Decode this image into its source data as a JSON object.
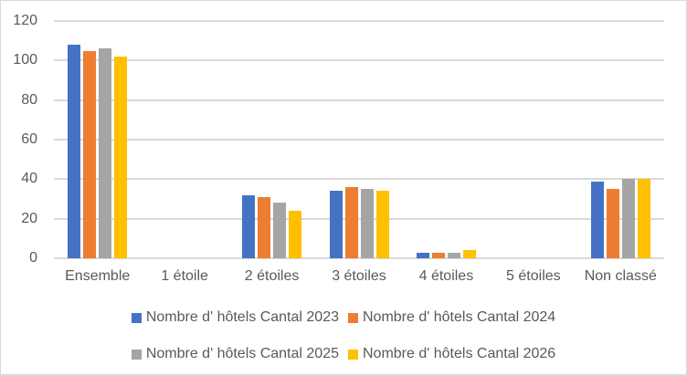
{
  "chart_data": {
    "type": "bar",
    "title": "",
    "xlabel": "",
    "ylabel": "",
    "categories": [
      "Ensemble",
      "1 étoile",
      "2 étoiles",
      "3 étoiles",
      "4 étoiles",
      "5 étoiles",
      "Non classé"
    ],
    "series": [
      {
        "name": "Nombre d' hôtels Cantal 2023",
        "color": "#4472C4",
        "values": [
          108,
          0,
          32,
          34,
          3,
          0,
          39
        ]
      },
      {
        "name": "Nombre d' hôtels Cantal 2024",
        "color": "#ED7D31",
        "values": [
          105,
          0,
          31,
          36,
          3,
          0,
          35
        ]
      },
      {
        "name": "Nombre d' hôtels Cantal 2025",
        "color": "#A5A5A5",
        "values": [
          106,
          0,
          28,
          35,
          3,
          0,
          40
        ]
      },
      {
        "name": "Nombre d' hôtels Cantal 2026",
        "color": "#FFC000",
        "values": [
          102,
          0,
          24,
          34,
          4,
          0,
          40
        ]
      }
    ],
    "y_axis": {
      "min": 0,
      "max": 120,
      "step": 20,
      "ticks": [
        0,
        20,
        40,
        60,
        80,
        100,
        120
      ]
    },
    "grid": true,
    "legend_position": "bottom",
    "legend_rows": [
      [
        0,
        1
      ],
      [
        2,
        3
      ]
    ],
    "colors": {
      "gridline": "#D9D9D9",
      "axis_text": "#595959",
      "legend_text": "#595959",
      "background": "#FFFFFF",
      "frame_border": "#D6D9DD"
    }
  }
}
